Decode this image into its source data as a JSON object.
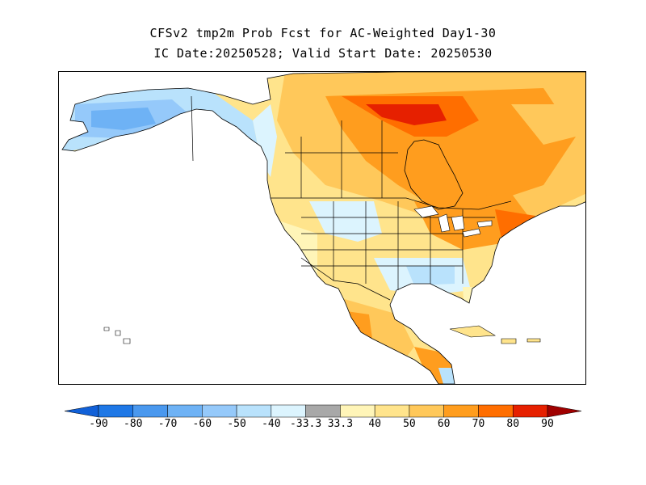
{
  "title": {
    "line1": "CFSv2 tmp2m Prob Fcst for AC-Weighted Day1-30",
    "line2": "IC Date:20250528; Valid Start Date: 20250530"
  },
  "colorbar": {
    "labels": [
      "-90",
      "-80",
      "-70",
      "-60",
      "-50",
      "-40",
      "-33.3",
      "33.3",
      "40",
      "50",
      "60",
      "70",
      "80",
      "90"
    ],
    "segment_colors": [
      "#1f78e6",
      "#4a98ee",
      "#6eb2f5",
      "#95c9fa",
      "#b9e2fc",
      "#dcf4fe",
      "#a8a8a8",
      "#fff5b8",
      "#ffe48c",
      "#ffc85a",
      "#ff9d1e",
      "#ff6e00",
      "#e62000"
    ],
    "low_end_color": "#1060d8",
    "high_end_color": "#a00000"
  },
  "map": {
    "ocean_color": "#ffffff",
    "border_color": "#000000"
  }
}
